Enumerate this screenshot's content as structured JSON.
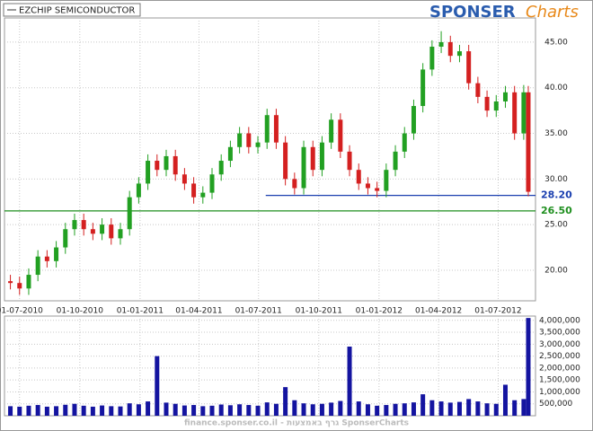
{
  "logo": {
    "brand": "SPONSER",
    "suffix": "Charts"
  },
  "footer": "finance.sponser.co.il - גרף באמצעות SponserCharts",
  "chart_data": [
    {
      "type": "candlestick",
      "legend": "EZCHIP SEMICONDUCTOR",
      "x": [
        "2010-06-17",
        "2010-07-01",
        "2010-07-15",
        "2010-07-29",
        "2010-08-12",
        "2010-08-26",
        "2010-09-09",
        "2010-09-23",
        "2010-10-07",
        "2010-10-21",
        "2010-11-04",
        "2010-11-18",
        "2010-12-02",
        "2010-12-16",
        "2010-12-30",
        "2011-01-13",
        "2011-01-27",
        "2011-02-10",
        "2011-02-24",
        "2011-03-10",
        "2011-03-24",
        "2011-04-07",
        "2011-04-21",
        "2011-05-05",
        "2011-05-19",
        "2011-06-02",
        "2011-06-16",
        "2011-06-30",
        "2011-07-14",
        "2011-07-28",
        "2011-08-11",
        "2011-08-25",
        "2011-09-08",
        "2011-09-22",
        "2011-10-06",
        "2011-10-20",
        "2011-11-03",
        "2011-11-17",
        "2011-12-01",
        "2011-12-15",
        "2011-12-29",
        "2012-01-12",
        "2012-01-26",
        "2012-02-09",
        "2012-02-23",
        "2012-03-08",
        "2012-03-22",
        "2012-04-05",
        "2012-04-19",
        "2012-05-03",
        "2012-05-17",
        "2012-05-31",
        "2012-06-14",
        "2012-06-28",
        "2012-07-12",
        "2012-07-26",
        "2012-08-09",
        "2012-08-16"
      ],
      "open": [
        18.8,
        18.6,
        18.0,
        19.5,
        21.5,
        21.0,
        22.5,
        24.5,
        25.5,
        24.5,
        24.0,
        25.0,
        23.5,
        24.5,
        28.0,
        29.5,
        32.0,
        31.0,
        32.5,
        30.5,
        29.5,
        28.0,
        28.5,
        30.5,
        32.0,
        33.5,
        35.0,
        33.5,
        34.0,
        37.0,
        34.0,
        30.0,
        29.0,
        33.5,
        31.0,
        34.0,
        36.5,
        33.0,
        31.0,
        29.5,
        29.0,
        28.7,
        31.0,
        33.0,
        35.0,
        38.0,
        42.0,
        44.5,
        45.0,
        43.5,
        44.0,
        40.5,
        39.0,
        37.5,
        38.5,
        39.5,
        35.0,
        39.5
      ],
      "high": [
        19.5,
        19.3,
        20.2,
        22.2,
        22.2,
        23.2,
        25.2,
        26.2,
        26.2,
        25.2,
        25.7,
        25.7,
        25.2,
        28.7,
        30.2,
        32.7,
        32.7,
        33.2,
        33.2,
        31.2,
        30.2,
        29.2,
        31.2,
        32.7,
        34.2,
        35.7,
        35.7,
        34.7,
        37.7,
        37.7,
        34.7,
        30.7,
        34.2,
        34.2,
        34.7,
        37.2,
        37.2,
        33.7,
        31.7,
        30.2,
        29.7,
        31.7,
        33.7,
        35.7,
        38.7,
        42.7,
        45.2,
        46.2,
        45.7,
        44.7,
        44.7,
        41.2,
        39.7,
        39.2,
        40.2,
        40.2,
        40.3,
        40.2
      ],
      "low": [
        17.9,
        17.3,
        17.3,
        18.8,
        20.3,
        20.3,
        21.8,
        23.8,
        23.8,
        23.3,
        23.3,
        22.8,
        22.8,
        23.8,
        27.3,
        28.8,
        30.3,
        30.3,
        29.8,
        28.8,
        27.3,
        27.3,
        27.8,
        29.8,
        31.3,
        32.8,
        32.8,
        32.8,
        33.3,
        33.3,
        29.3,
        28.3,
        28.3,
        30.3,
        30.3,
        33.3,
        32.3,
        30.3,
        28.8,
        28.3,
        28.0,
        28.0,
        30.3,
        32.3,
        34.3,
        37.3,
        41.3,
        43.8,
        42.8,
        42.8,
        39.8,
        38.3,
        36.8,
        36.8,
        37.8,
        34.3,
        34.3,
        28.1
      ],
      "close": [
        18.6,
        18.0,
        19.5,
        21.5,
        21.0,
        22.5,
        24.5,
        25.5,
        24.5,
        24.0,
        25.0,
        23.5,
        24.5,
        28.0,
        29.5,
        32.0,
        31.0,
        32.5,
        30.5,
        29.5,
        28.0,
        28.5,
        30.5,
        32.0,
        33.5,
        35.0,
        33.5,
        34.0,
        37.0,
        34.0,
        30.0,
        29.0,
        33.5,
        31.0,
        34.0,
        36.5,
        33.0,
        31.0,
        29.5,
        29.0,
        28.7,
        31.0,
        33.0,
        35.0,
        38.0,
        42.0,
        44.5,
        45.0,
        43.5,
        44.0,
        40.5,
        39.0,
        37.5,
        38.5,
        39.5,
        35.0,
        39.5,
        28.6
      ],
      "up_color": "#22a022",
      "down_color": "#d42020",
      "xlim": [
        "2010-06-08",
        "2012-08-27"
      ],
      "xticks": [
        {
          "value": "2010-07-01",
          "label": "01-07-2010"
        },
        {
          "value": "2010-10-01",
          "label": "01-10-2010"
        },
        {
          "value": "2011-01-01",
          "label": "01-01-2011"
        },
        {
          "value": "2011-04-01",
          "label": "01-04-2011"
        },
        {
          "value": "2011-07-01",
          "label": "01-07-2011"
        },
        {
          "value": "2011-10-01",
          "label": "01-10-2011"
        },
        {
          "value": "2012-01-01",
          "label": "01-01-2012"
        },
        {
          "value": "2012-04-01",
          "label": "01-04-2012"
        },
        {
          "value": "2012-07-01",
          "label": "01-07-2012"
        }
      ],
      "ylim": [
        16.65,
        47.65
      ],
      "yticks": [
        {
          "value": 20,
          "label": "20.00"
        },
        {
          "value": 25,
          "label": "25.00"
        },
        {
          "value": 30,
          "label": "30.00"
        },
        {
          "value": 35,
          "label": "35.00"
        },
        {
          "value": 40,
          "label": "40.00"
        },
        {
          "value": 45,
          "label": "45.00"
        }
      ],
      "grid": true,
      "levels": [
        {
          "value": 28.2,
          "label": "28.20",
          "color": "#1a3fb0",
          "start": "2011-07-12"
        },
        {
          "value": 26.5,
          "label": "26.50",
          "color": "#1f8f1f",
          "start": "2010-06-08"
        }
      ]
    },
    {
      "type": "bar",
      "color": "#1414a0",
      "values": [
        400000,
        380000,
        420000,
        450000,
        380000,
        400000,
        460000,
        500000,
        420000,
        380000,
        430000,
        400000,
        390000,
        520000,
        480000,
        600000,
        2500000,
        550000,
        500000,
        430000,
        450000,
        400000,
        420000,
        470000,
        440000,
        480000,
        450000,
        420000,
        560000,
        500000,
        1200000,
        650000,
        520000,
        480000,
        500000,
        550000,
        620000,
        2900000,
        600000,
        480000,
        420000,
        450000,
        500000,
        520000,
        560000,
        900000,
        650000,
        600000,
        550000,
        580000,
        700000,
        600000,
        520000,
        500000,
        1300000,
        650000,
        700000,
        4100000
      ],
      "ylim": [
        0,
        4180000
      ],
      "yticks": [
        {
          "value": 500000,
          "label": "500,000"
        },
        {
          "value": 1000000,
          "label": "1,000,000"
        },
        {
          "value": 1500000,
          "label": "1,500,000"
        },
        {
          "value": 2000000,
          "label": "2,000,000"
        },
        {
          "value": 2500000,
          "label": "2,500,000"
        },
        {
          "value": 3000000,
          "label": "3,000,000"
        },
        {
          "value": 3500000,
          "label": "3,500,000"
        },
        {
          "value": 4000000,
          "label": "4,000,000"
        }
      ],
      "grid": true
    }
  ]
}
